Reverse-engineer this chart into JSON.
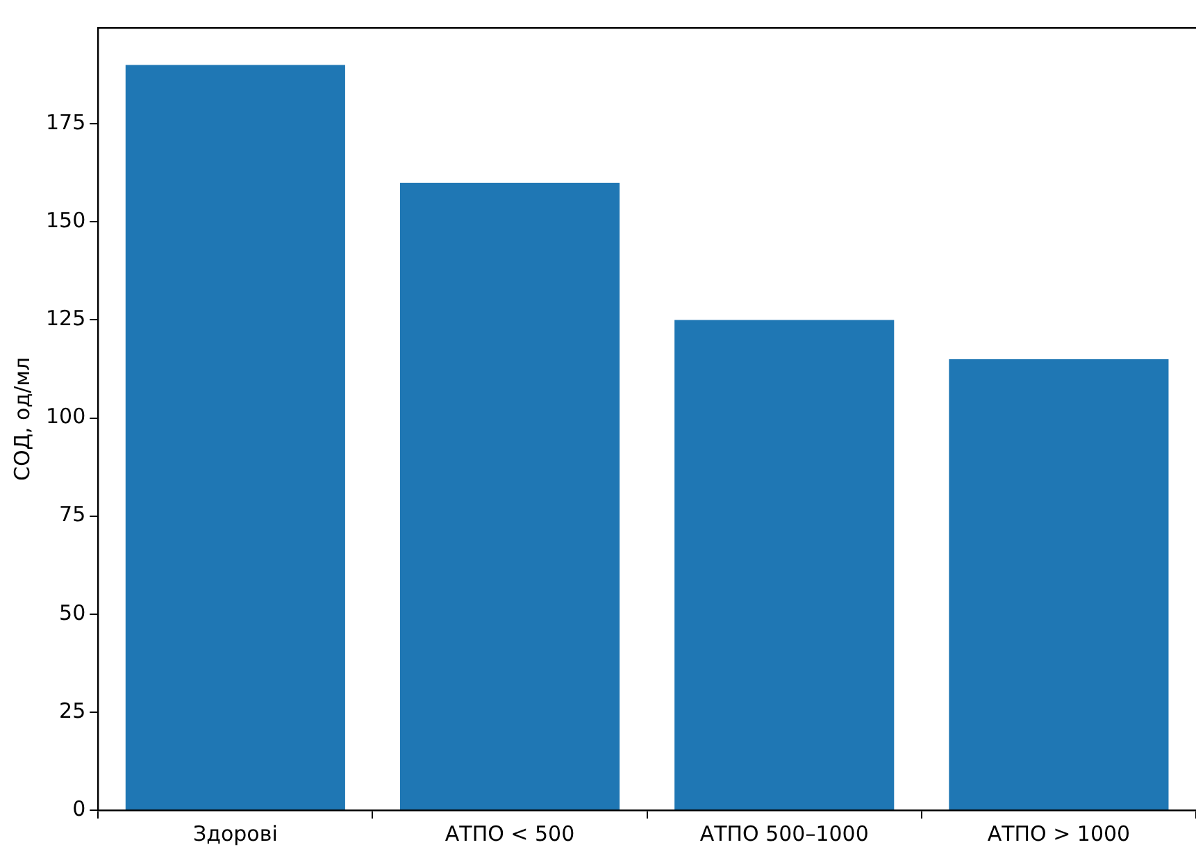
{
  "chart_data": {
    "type": "bar",
    "ylabel": "СОД, од/мл",
    "categories": [
      "Здорові",
      "АТПО < 500",
      "АТПО 500–1000",
      "АТПО > 1000"
    ],
    "values": [
      190,
      160,
      125,
      115
    ],
    "color": "#1f77b4",
    "ylim": [
      0,
      199.5
    ],
    "yticks": [
      0,
      25,
      50,
      75,
      100,
      125,
      150,
      175
    ],
    "grid": false,
    "legend": false
  }
}
